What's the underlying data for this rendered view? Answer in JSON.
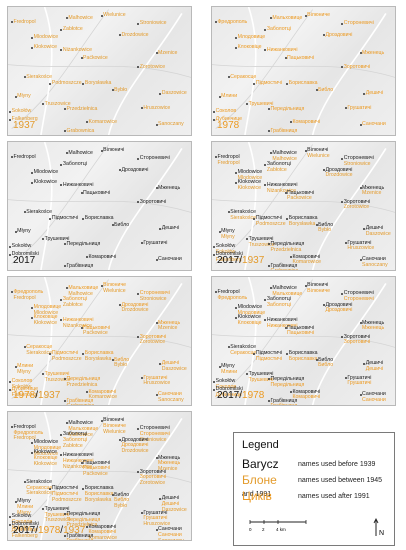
{
  "panels": [
    {
      "caption_parts": [
        {
          "text": "1937",
          "cls": "c1939"
        }
      ]
    },
    {
      "caption_parts": [
        {
          "text": "1978",
          "cls": "c1978"
        }
      ]
    },
    {
      "caption_parts": [
        {
          "text": "2017",
          "cls": "c2017"
        }
      ]
    },
    {
      "caption_parts": [
        {
          "text": "2017",
          "cls": "c2017"
        },
        {
          "text": "/",
          "cls": "sep"
        },
        {
          "text": "1937",
          "cls": "c1939"
        }
      ]
    },
    {
      "caption_parts": [
        {
          "text": "1978",
          "cls": "c1978"
        },
        {
          "text": "/",
          "cls": "sep"
        },
        {
          "text": "1937",
          "cls": "c1939"
        }
      ]
    },
    {
      "caption_parts": [
        {
          "text": "2017",
          "cls": "c2017"
        },
        {
          "text": "/",
          "cls": "sep"
        },
        {
          "text": "1978",
          "cls": "c1978"
        }
      ]
    },
    {
      "caption_parts": [
        {
          "text": "2017",
          "cls": "c2017"
        },
        {
          "text": "/",
          "cls": "sep"
        },
        {
          "text": "1978",
          "cls": "c1978"
        },
        {
          "text": "/",
          "cls": "sep"
        },
        {
          "text": "1937",
          "cls": "c1939"
        }
      ]
    }
  ],
  "places": [
    {
      "id": "fredropol",
      "n1939": "Fredropol",
      "n1978": "Фредрополь",
      "n2017": "Fredropol"
    },
    {
      "id": "malhowice",
      "n1939": "Malhowice",
      "n1978": "Мальховице",
      "n2017": "Malhowice"
    },
    {
      "id": "wielunice",
      "n1939": "Wielunice",
      "n1978": "Вілюниче",
      "n2017": "Вілюничі"
    },
    {
      "id": "stroniowice",
      "n1939": "Stroniowice",
      "n1978": "Стороневичі",
      "n2017": "Стороневичі"
    },
    {
      "id": "zabłotce",
      "n1939": "Zabłotce",
      "n1978": "Заболотці",
      "n2017": "Заболотці"
    },
    {
      "id": "mlodowice",
      "n1939": "Mlodowice",
      "n1978": "Млодовице",
      "n2017": "Mlodowice"
    },
    {
      "id": "drozdowice",
      "n1939": "Drozdowice",
      "n1978": "Дроздовичі",
      "n2017": "Дроздовичі"
    },
    {
      "id": "klokowice",
      "n1939": "Kłokowice",
      "n1978": "Клоковіце",
      "n2017": "Klokowice"
    },
    {
      "id": "nizankowice",
      "n1939": "Niżankowice",
      "n1978": "Нижанковичі",
      "n2017": "Нижанковичі"
    },
    {
      "id": "paćkowice",
      "n1939": "Paćkowice",
      "n1978": "Пацьковичі",
      "n2017": "Пацьковичі"
    },
    {
      "id": "mzenice",
      "n1939": "Mzenice",
      "n1978": "Мженець",
      "n2017": "Мженець"
    },
    {
      "id": "zorotowice",
      "n1939": "Zorotowice",
      "n1978": "Зоротовичі",
      "n2017": "Зоротовичі"
    },
    {
      "id": "sierakosce",
      "n1939": "Sierakośce",
      "n1978": "Серакосце",
      "n2017": "Sierakośce"
    },
    {
      "id": "podmoszcze",
      "n1939": "Podmoszcze",
      "n1978": "Підмостичі",
      "n2017": "Підмостичі"
    },
    {
      "id": "borysławka",
      "n1939": "Borysławka",
      "n1978": "Бориславка",
      "n2017": "Бориславка"
    },
    {
      "id": "byblo",
      "n1939": "Bybło",
      "n1978": "Библо",
      "n2017": "Библо"
    },
    {
      "id": "daszowice",
      "n1939": "Daszowice",
      "n1978": "Дешичі",
      "n2017": "Дешичі"
    },
    {
      "id": "mlyny",
      "n1939": "Młyny",
      "n1978": "Млини",
      "n2017": "Młyny"
    },
    {
      "id": "truszowice",
      "n1939": "Truszowice",
      "n1978": "Трушевичі",
      "n2017": "Трушевичі"
    },
    {
      "id": "hruszowice",
      "n1939": "Hruszowice",
      "n1978": "Грушатичі",
      "n2017": "Грушатичі"
    },
    {
      "id": "sokołów",
      "n1939": "Sokołów",
      "n1978": "Соколов",
      "n2017": "Sokołów"
    },
    {
      "id": "dobromilski",
      "n1939": "Falkenberg",
      "n1978": "Дубинчице",
      "n2017": "Dobromilski"
    },
    {
      "id": "peredylnica",
      "n1939": "Przedziełnica",
      "n1978": "Передільниця",
      "n2017": "Передільниця"
    },
    {
      "id": "komarowice",
      "n1939": "Komarowice",
      "n1978": "Комаровичі",
      "n2017": "Комаровичі"
    },
    {
      "id": "sanczowa",
      "n1939": "Sanoczany",
      "n1978": "Саночани",
      "n2017": "Саночани"
    },
    {
      "id": "grabownica",
      "n1939": "Grabownica",
      "n1978": "Грабівниця",
      "n2017": "Грабівниця"
    }
  ],
  "legend": {
    "title": "Legend",
    "rows": [
      {
        "example": "Barycz",
        "desc": "names used before 1939"
      },
      {
        "example": "Блоне",
        "desc": "names used between 1945 and 1991"
      },
      {
        "example": "Циків",
        "desc": "names used after 1991"
      }
    ],
    "scale": {
      "ticks": [
        "0",
        "2",
        "4 km"
      ]
    },
    "north_label": "N"
  }
}
